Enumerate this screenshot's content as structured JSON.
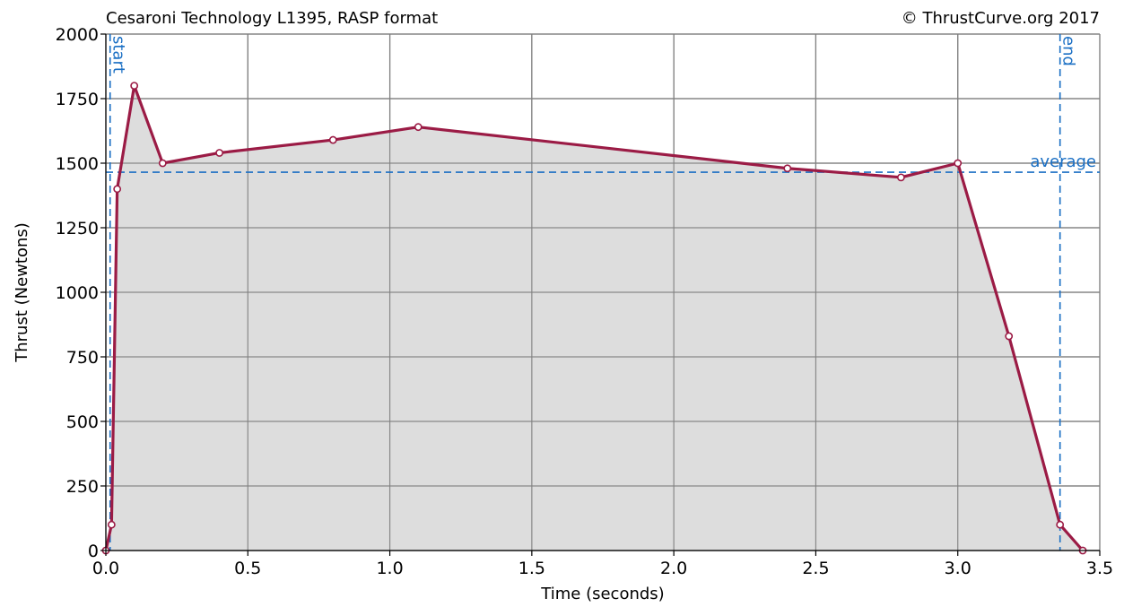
{
  "header": {
    "title": "Cesaroni Technology L1395, RASP format",
    "copyright": "© ThrustCurve.org 2017"
  },
  "chart_data": {
    "type": "area",
    "title": "Cesaroni Technology L1395, RASP format",
    "xlabel": "Time (seconds)",
    "ylabel": "Thrust (Newtons)",
    "xlim": [
      0,
      3.5
    ],
    "ylim": [
      0,
      2000
    ],
    "x_ticks": [
      0,
      0.5,
      1,
      1.5,
      2,
      2.5,
      3,
      3.5
    ],
    "x_tick_labels": [
      "0.0",
      "0.5",
      "1.0",
      "1.5",
      "2.0",
      "2.5",
      "3.0",
      "3.5"
    ],
    "y_ticks": [
      0,
      250,
      500,
      750,
      1000,
      1250,
      1500,
      1750,
      2000
    ],
    "y_tick_labels": [
      "0",
      "250",
      "500",
      "750",
      "1000",
      "1250",
      "1500",
      "1750",
      "2000"
    ],
    "grid": true,
    "series": [
      {
        "x": [
          0.0,
          0.02,
          0.04,
          0.1,
          0.2,
          0.4,
          0.8,
          1.1,
          2.4,
          2.8,
          3.0,
          3.18,
          3.36,
          3.44
        ],
        "y": [
          0,
          100,
          1400,
          1800,
          1500,
          1540,
          1590,
          1640,
          1480,
          1445,
          1500,
          830,
          100,
          0
        ]
      }
    ],
    "reference_lines": {
      "start": {
        "x": 0.015,
        "label": "start"
      },
      "end": {
        "x": 3.36,
        "label": "end"
      },
      "average": {
        "y": 1465,
        "label": "average"
      }
    },
    "colors": {
      "line": "#9b1b45",
      "fill": "#dddddd",
      "grid": "#808080",
      "reference": "#1a6fc4",
      "marker_fill": "#ffffff"
    }
  }
}
